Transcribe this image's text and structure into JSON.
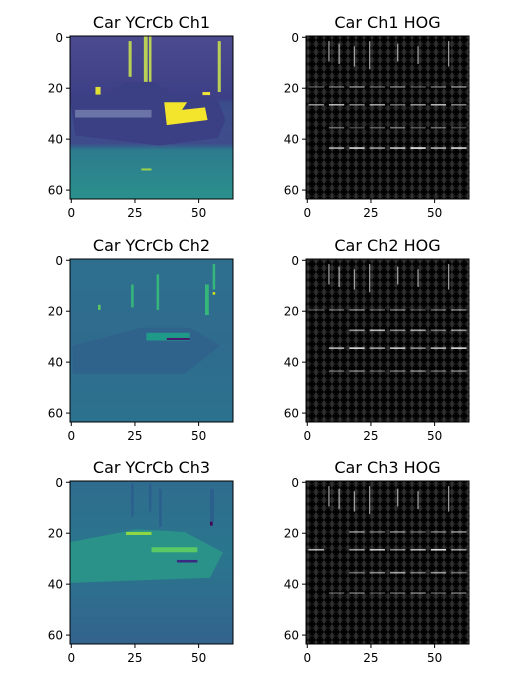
{
  "chart_data": [
    {
      "type": "heatmap",
      "title": "Car YCrCb Ch1",
      "colormap": "viridis",
      "xlim": [
        0,
        63
      ],
      "ylim": [
        63,
        0
      ],
      "xticks": [
        0,
        25,
        50
      ],
      "yticks": [
        0,
        20,
        40,
        60
      ]
    },
    {
      "type": "heatmap",
      "title": "Car Ch1 HOG",
      "colormap": "gray",
      "xlim": [
        0,
        63
      ],
      "ylim": [
        63,
        0
      ],
      "xticks": [
        0,
        25,
        50
      ],
      "yticks": [
        0,
        20,
        40,
        60
      ]
    },
    {
      "type": "heatmap",
      "title": "Car YCrCb Ch2",
      "colormap": "viridis",
      "xlim": [
        0,
        63
      ],
      "ylim": [
        63,
        0
      ],
      "xticks": [
        0,
        25,
        50
      ],
      "yticks": [
        0,
        20,
        40,
        60
      ]
    },
    {
      "type": "heatmap",
      "title": "Car Ch2 HOG",
      "colormap": "gray",
      "xlim": [
        0,
        63
      ],
      "ylim": [
        63,
        0
      ],
      "xticks": [
        0,
        25,
        50
      ],
      "yticks": [
        0,
        20,
        40,
        60
      ]
    },
    {
      "type": "heatmap",
      "title": "Car YCrCb Ch3",
      "colormap": "viridis",
      "xlim": [
        0,
        63
      ],
      "ylim": [
        63,
        0
      ],
      "xticks": [
        0,
        25,
        50
      ],
      "yticks": [
        0,
        20,
        40,
        60
      ]
    },
    {
      "type": "heatmap",
      "title": "Car Ch3 HOG",
      "colormap": "gray",
      "xlim": [
        0,
        63
      ],
      "ylim": [
        63,
        0
      ],
      "xticks": [
        0,
        25,
        50
      ],
      "yticks": [
        0,
        20,
        40,
        60
      ]
    }
  ]
}
